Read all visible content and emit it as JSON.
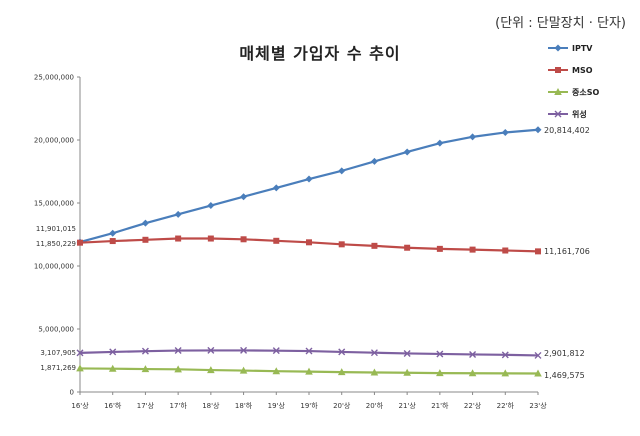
{
  "unit_label": "(단위 : 단말장치 · 단자)",
  "chart_data": {
    "type": "line",
    "title": "매체별 가입자 수 추이",
    "categories": [
      "16'상",
      "16'하",
      "17'상",
      "17'하",
      "18'상",
      "18'하",
      "19'상",
      "19'하",
      "20'상",
      "20'하",
      "21'상",
      "21'하",
      "22'상",
      "22'하",
      "23'상"
    ],
    "ylim": [
      0,
      25000000
    ],
    "yticks": [
      0,
      5000000,
      10000000,
      15000000,
      20000000,
      25000000
    ],
    "ytick_labels": [
      "0",
      "5,000,000",
      "10,000,000",
      "15,000,000",
      "20,000,000",
      "25,000,000"
    ],
    "grid": false,
    "legend": "right",
    "series": [
      {
        "name": "IPTV",
        "color": "#4a7ebb",
        "marker": "diamond",
        "values": [
          11901015,
          12600000,
          13400000,
          14100000,
          14800000,
          15500000,
          16200000,
          16900000,
          17550000,
          18300000,
          19050000,
          19750000,
          20250000,
          20600000,
          20814402
        ],
        "start_label": "11,901,015",
        "end_label": "20,814,402"
      },
      {
        "name": "MSO",
        "color": "#be4b48",
        "marker": "square",
        "values": [
          11850229,
          11980000,
          12080000,
          12180000,
          12180000,
          12120000,
          12000000,
          11880000,
          11720000,
          11600000,
          11450000,
          11360000,
          11300000,
          11230000,
          11161706
        ],
        "start_label": "11,850,229",
        "end_label": "11,161,706"
      },
      {
        "name": "중소SO",
        "color": "#98b954",
        "marker": "triangle",
        "values": [
          1871269,
          1850000,
          1820000,
          1800000,
          1740000,
          1700000,
          1650000,
          1620000,
          1580000,
          1550000,
          1530000,
          1500000,
          1490000,
          1480000,
          1469575
        ],
        "start_label": "1,871,269",
        "end_label": "1,469,575"
      },
      {
        "name": "위성",
        "color": "#7d60a0",
        "marker": "x",
        "values": [
          3107905,
          3180000,
          3240000,
          3290000,
          3300000,
          3300000,
          3280000,
          3250000,
          3180000,
          3120000,
          3060000,
          3020000,
          2980000,
          2950000,
          2901812
        ],
        "start_label": "3,107,905",
        "end_label": "2,901,812"
      }
    ]
  }
}
